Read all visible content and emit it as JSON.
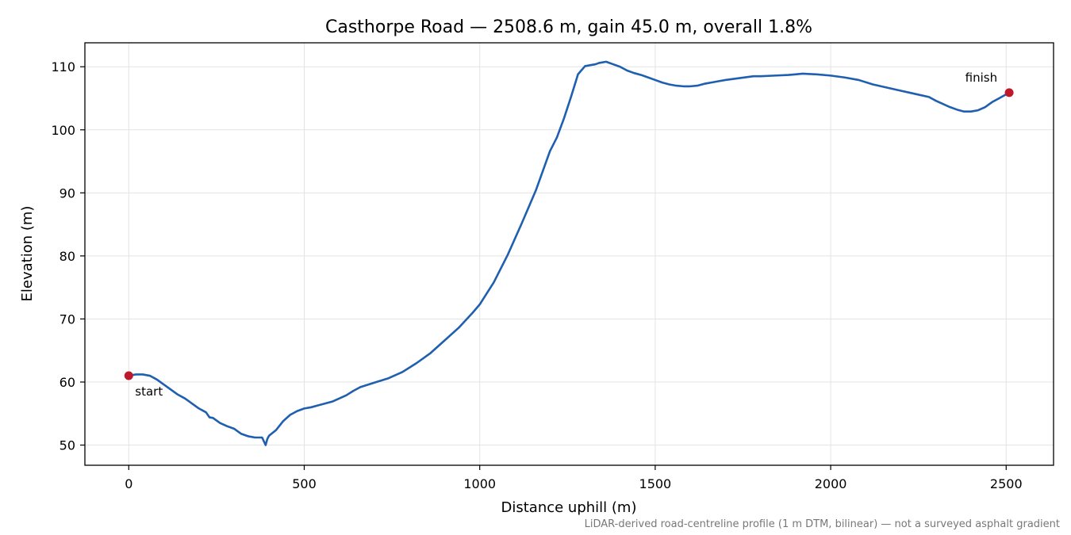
{
  "chart_data": {
    "type": "line",
    "title": "Casthorpe Road — 2508.6 m, gain 45.0 m, overall 1.8%",
    "xlabel": "Distance uphill (m)",
    "ylabel": "Elevation (m)",
    "xlim": [
      -125,
      2635
    ],
    "ylim": [
      46.8,
      113.8
    ],
    "xticks": [
      0,
      500,
      1000,
      1500,
      2000,
      2500
    ],
    "yticks": [
      50,
      60,
      70,
      80,
      90,
      100,
      110
    ],
    "grid": true,
    "line_color": "#1f5fb0",
    "marker_color": "#c0182b",
    "series": [
      {
        "x": [
          0,
          20,
          40,
          60,
          80,
          100,
          120,
          140,
          160,
          180,
          200,
          220,
          230,
          240,
          260,
          280,
          300,
          310,
          320,
          340,
          360,
          380,
          390,
          395,
          400,
          420,
          440,
          460,
          480,
          500,
          520,
          540,
          560,
          580,
          600,
          620,
          640,
          660,
          700,
          740,
          780,
          820,
          860,
          900,
          940,
          980,
          1000,
          1040,
          1080,
          1120,
          1160,
          1200,
          1220,
          1240,
          1260,
          1280,
          1300,
          1320,
          1330,
          1340,
          1360,
          1380,
          1400,
          1420,
          1440,
          1460,
          1480,
          1500,
          1520,
          1540,
          1560,
          1580,
          1600,
          1620,
          1640,
          1660,
          1680,
          1700,
          1740,
          1780,
          1800,
          1840,
          1880,
          1900,
          1920,
          1960,
          2000,
          2040,
          2080,
          2120,
          2160,
          2200,
          2240,
          2280,
          2300,
          2320,
          2340,
          2360,
          2380,
          2400,
          2420,
          2440,
          2460,
          2480,
          2508.6
        ],
        "y": [
          61.0,
          61.2,
          61.2,
          61.0,
          60.4,
          59.6,
          58.8,
          58.0,
          57.4,
          56.6,
          55.8,
          55.2,
          54.4,
          54.3,
          53.5,
          53.0,
          52.6,
          52.2,
          51.8,
          51.4,
          51.2,
          51.2,
          50.0,
          51.0,
          51.5,
          52.4,
          53.8,
          54.8,
          55.4,
          55.8,
          56.0,
          56.3,
          56.6,
          56.9,
          57.4,
          57.9,
          58.6,
          59.2,
          59.9,
          60.6,
          61.6,
          63.0,
          64.6,
          66.6,
          68.6,
          71.0,
          72.3,
          75.8,
          80.2,
          85.2,
          90.4,
          96.6,
          98.8,
          101.8,
          105.2,
          108.8,
          110.1,
          110.3,
          110.4,
          110.6,
          110.8,
          110.4,
          110.0,
          109.4,
          109.0,
          108.7,
          108.3,
          107.9,
          107.5,
          107.2,
          107.0,
          106.9,
          106.9,
          107.0,
          107.3,
          107.5,
          107.7,
          107.9,
          108.2,
          108.5,
          108.5,
          108.6,
          108.7,
          108.8,
          108.9,
          108.8,
          108.6,
          108.3,
          107.9,
          107.2,
          106.7,
          106.2,
          105.7,
          105.2,
          104.6,
          104.1,
          103.6,
          103.2,
          102.9,
          102.9,
          103.1,
          103.6,
          104.4,
          105.0,
          105.9
        ]
      }
    ],
    "annotations": [
      {
        "text": "start",
        "x": 0,
        "y": 61.0
      },
      {
        "text": "finish",
        "x": 2508.6,
        "y": 105.9
      }
    ],
    "footnote": "LiDAR-derived road-centreline profile (1 m DTM, bilinear) — not a surveyed asphalt gradient"
  }
}
